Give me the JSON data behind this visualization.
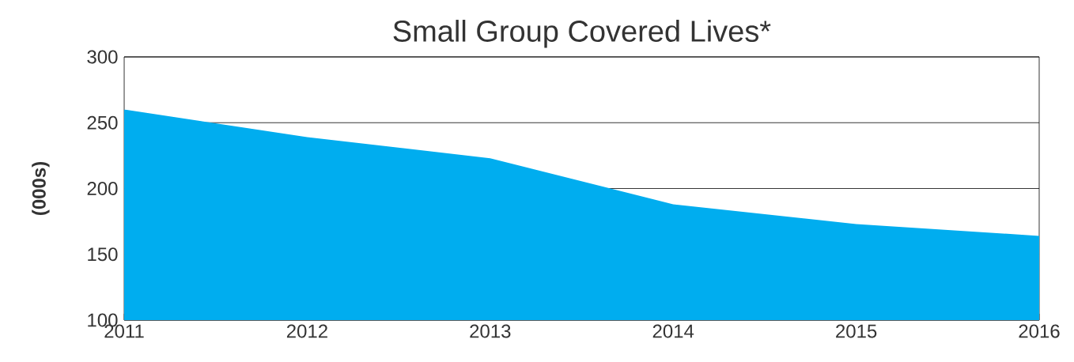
{
  "chart_data": {
    "type": "area",
    "title": "Small Group Covered Lives*",
    "ylabel": "(000s)",
    "x": [
      2011,
      2012,
      2013,
      2014,
      2015,
      2016
    ],
    "series": [
      {
        "color": "#00adef",
        "values": [
          260,
          239,
          223,
          188,
          173,
          164
        ]
      }
    ],
    "xlim": [
      2011,
      2016
    ],
    "xticks": [
      2011,
      2012,
      2013,
      2014,
      2015,
      2016
    ],
    "ylim": [
      100,
      300
    ],
    "yticks": [
      100,
      150,
      200,
      250,
      300
    ],
    "grid": "y"
  }
}
